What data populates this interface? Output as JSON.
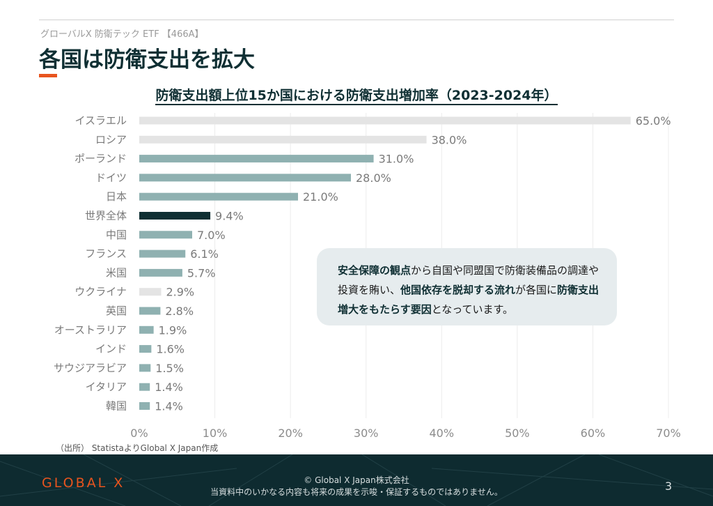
{
  "header": {
    "subtitle": "グローバルX 防衛テック ETF 【466A】",
    "title": "各国は防衛支出を拡大"
  },
  "colors": {
    "bar_teal": "#8fb1b1",
    "bar_gray": "#e4e4e4",
    "bar_dark": "#0f2f33",
    "accent": "#e8541e",
    "footer_bg": "#0e2b30"
  },
  "chart_data": {
    "type": "bar",
    "orientation": "horizontal",
    "title": "防衛支出額上位15か国における防衛支出増加率（2023-2024年）",
    "categories": [
      "イスラエル",
      "ロシア",
      "ポーランド",
      "ドイツ",
      "日本",
      "世界全体",
      "中国",
      "フランス",
      "米国",
      "ウクライナ",
      "英国",
      "オーストラリア",
      "インド",
      "サウジアラビア",
      "イタリア",
      "韓国"
    ],
    "values": [
      65.0,
      38.0,
      31.0,
      28.0,
      21.0,
      9.4,
      7.0,
      6.1,
      5.7,
      2.9,
      2.8,
      1.9,
      1.6,
      1.5,
      1.4,
      1.4
    ],
    "value_labels": [
      "65.0%",
      "38.0%",
      "31.0%",
      "28.0%",
      "21.0%",
      "9.4%",
      "7.0%",
      "6.1%",
      "5.7%",
      "2.9%",
      "2.8%",
      "1.9%",
      "1.6%",
      "1.5%",
      "1.4%",
      "1.4%"
    ],
    "bar_styles": [
      "gray",
      "gray",
      "teal",
      "teal",
      "teal",
      "dark",
      "teal",
      "teal",
      "teal",
      "gray",
      "teal",
      "teal",
      "teal",
      "teal",
      "teal",
      "teal"
    ],
    "xlim": [
      0,
      70
    ],
    "xticks": [
      0,
      10,
      20,
      30,
      40,
      50,
      60,
      70
    ],
    "xtick_labels": [
      "0%",
      "10%",
      "20%",
      "30%",
      "40%",
      "50%",
      "60%",
      "70%"
    ],
    "xlabel": "",
    "ylabel": "",
    "grid": true
  },
  "callout": {
    "b1": "安全保障の観点",
    "t1": "から自国や同盟国で防衛装備品の調達や投資を賄い、",
    "b2": "他国依存を脱却する流れ",
    "t2": "が各国に",
    "b3": "防衛支出増大をもたらす要因",
    "t3": "となっています。"
  },
  "source": "（出所） StatistaよりGlobal X Japan作成",
  "footer": {
    "logo": "GLOBAL X",
    "copyright": "© Global X Japan株式会社",
    "disclaimer": "当資料中のいかなる内容も将来の成果を示唆・保証するものではありません。",
    "page_number": "3"
  }
}
